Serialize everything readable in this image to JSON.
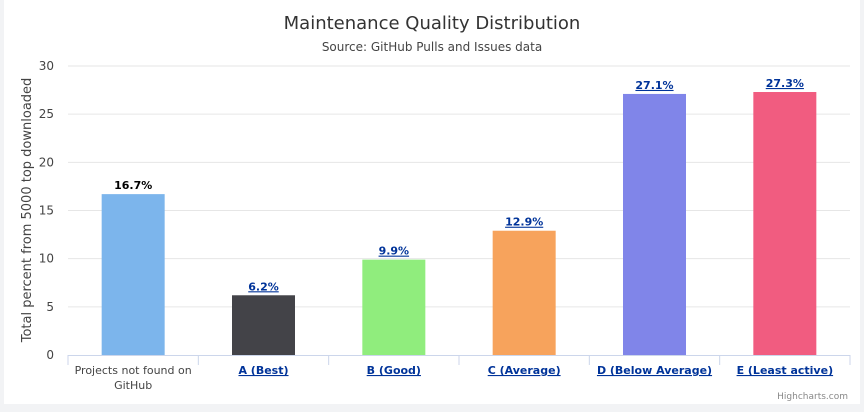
{
  "chart_data": {
    "type": "bar",
    "title": "Maintenance Quality Distribution",
    "subtitle": "Source: GitHub Pulls and Issues data",
    "xlabel": "",
    "ylabel": "Total percent from 5000 top downloaded",
    "ylim": [
      0,
      30
    ],
    "yticks": [
      0,
      5,
      10,
      15,
      20,
      25,
      30
    ],
    "grid": true,
    "categories": [
      "Projects not found on GitHub",
      "A (Best)",
      "B (Good)",
      "C (Average)",
      "D (Below Average)",
      "E (Least active)"
    ],
    "category_is_link": [
      false,
      true,
      true,
      true,
      true,
      true
    ],
    "values": [
      16.7,
      6.2,
      9.9,
      12.9,
      27.1,
      27.3
    ],
    "data_labels": [
      "16.7%",
      "6.2%",
      "9.9%",
      "12.9%",
      "27.1%",
      "27.3%"
    ],
    "colors": [
      "#7cb5ec",
      "#434348",
      "#90ed7d",
      "#f7a35c",
      "#8085e9",
      "#f15c80"
    ]
  },
  "credit": "Highcharts.com"
}
